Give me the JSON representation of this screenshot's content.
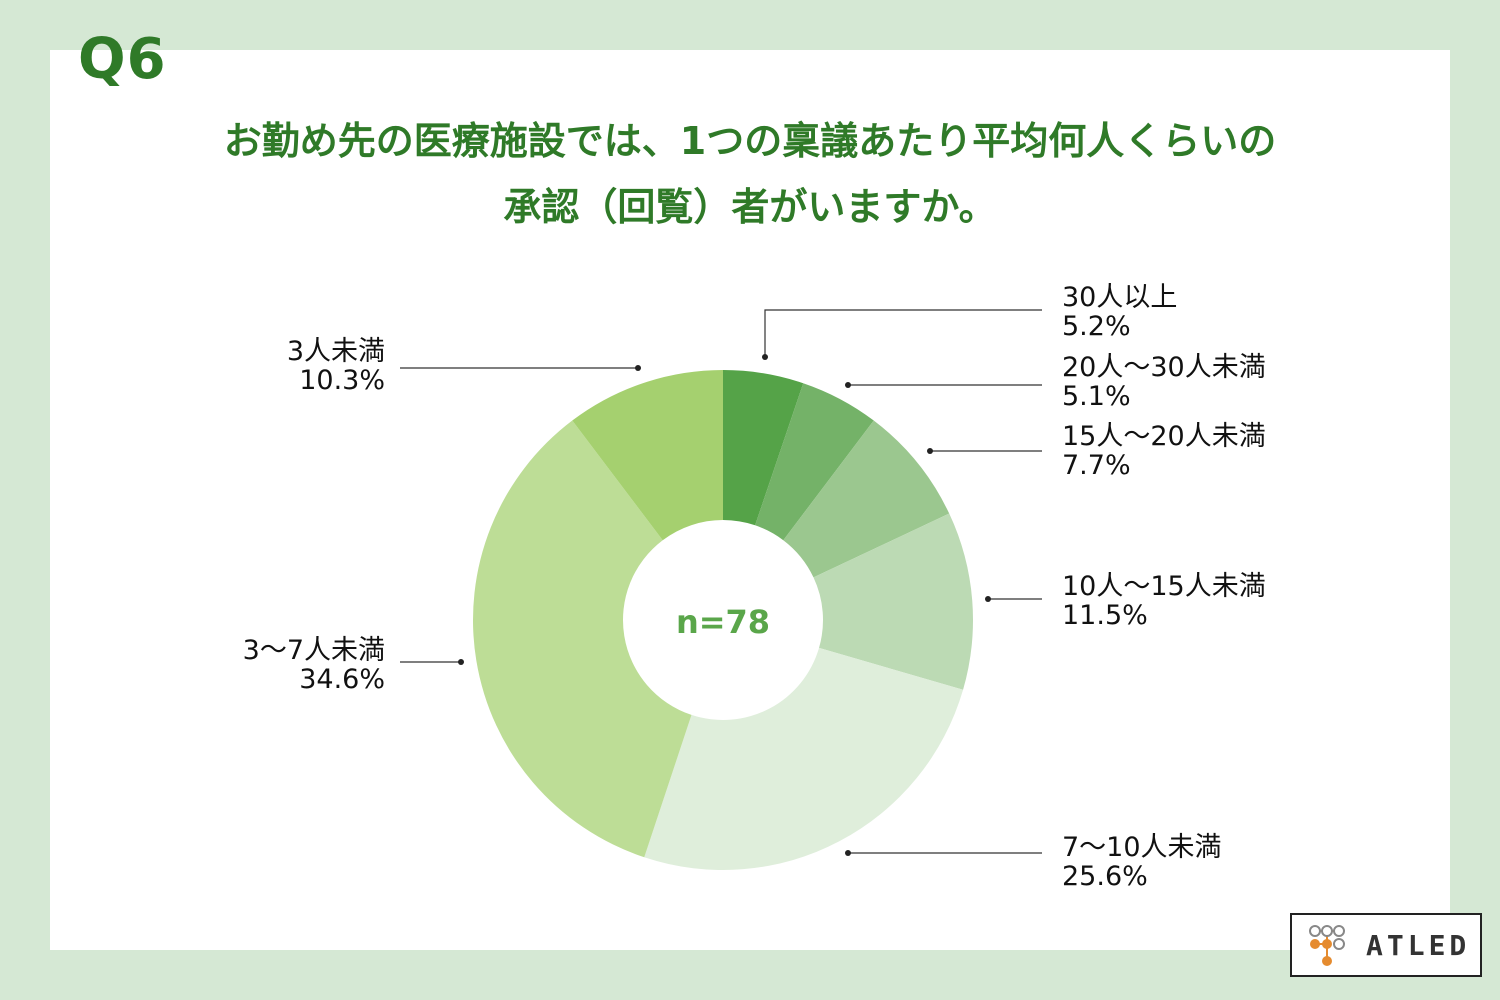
{
  "question_label": "Q6",
  "title_lines": [
    "お勤め先の医療施設では、1つの稟議あたり平均何人くらいの",
    "承認（回覧）者がいますか。"
  ],
  "logo": {
    "text": "ATLED"
  },
  "colors": {
    "background": "#d5e8d4",
    "card": "#ffffff",
    "title": "#2f7a28",
    "center_label": "#5aa64a"
  },
  "chart_data": {
    "type": "pie",
    "donut": true,
    "center_label": "n=78",
    "slices": [
      {
        "label": "30人以上",
        "value_label": "5.2%",
        "value": 5.2,
        "color": "#55a348"
      },
      {
        "label": "20人〜30人未満",
        "value_label": "5.1%",
        "value": 5.1,
        "color": "#74b268"
      },
      {
        "label": "15人〜20人未満",
        "value_label": "7.7%",
        "value": 7.7,
        "color": "#9bc78f"
      },
      {
        "label": "10人〜15人未満",
        "value_label": "11.5%",
        "value": 11.5,
        "color": "#bcdab4"
      },
      {
        "label": "7〜10人未満",
        "value_label": "25.6%",
        "value": 25.6,
        "color": "#dfeedb"
      },
      {
        "label": "3〜7人未満",
        "value_label": "34.6%",
        "value": 34.6,
        "color": "#bddd96"
      },
      {
        "label": "3人未満",
        "value_label": "10.3%",
        "value": 10.3,
        "color": "#a5d06f"
      }
    ]
  }
}
